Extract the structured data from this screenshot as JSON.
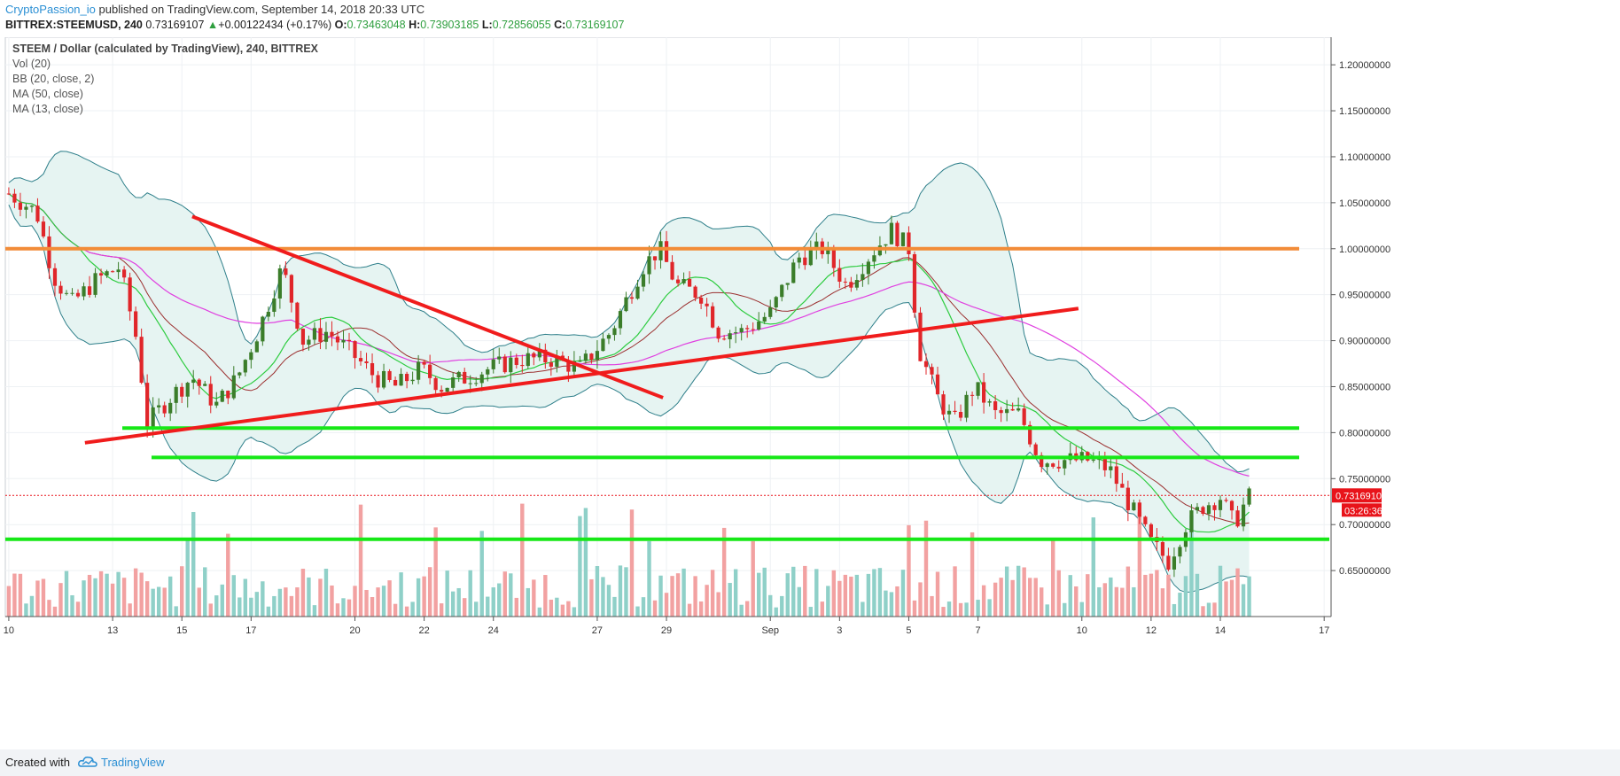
{
  "header": {
    "publisher": "CryptoPassion_io",
    "published_text": "published on TradingView.com, September 14, 2018 20:33 UTC",
    "symbol": "BITTREX:STEEMUSD, 240",
    "last": "0.73169107",
    "change_arrow": "▲",
    "change": "+0.00122434 (+0.17%)",
    "o_label": "O:",
    "o_value": "0.73463048",
    "h_label": "H:",
    "h_value": "0.73903185",
    "l_label": "L:",
    "l_value": "0.72856055",
    "c_label": "C:",
    "c_value": "0.73169107"
  },
  "footer": {
    "created_with": "Created with",
    "brand": "TradingView"
  },
  "colors": {
    "up": "#3b7d2a",
    "down": "#e0262a",
    "vol_up": "#8fd0c8",
    "vol_down": "#f2a1a1",
    "bb_band": "#2e7f8a",
    "bb_fill": "#e6f4f2",
    "bb_basis": "#9b2f2f",
    "ma50": "#e040e0",
    "ma13": "#2ecc40",
    "orange_line": "#f28c38",
    "red_trend": "#f01c1c",
    "green_support": "#17e817",
    "price_tag": "#e8131a"
  },
  "chart_data": {
    "type": "candlestick",
    "title": "STEEM / Dollar (calculated by TradingView), 240, BITTREX",
    "indicators": [
      "Vol (20)",
      "BB (20, close, 2)",
      "MA (50, close)",
      "MA (13, close)"
    ],
    "ylim": [
      0.6,
      1.23
    ],
    "y_ticks": [
      "1.20000000",
      "1.15000000",
      "1.10000000",
      "1.05000000",
      "1.00000000",
      "0.95000000",
      "0.90000000",
      "0.85000000",
      "0.80000000",
      "0.75000000",
      "0.70000000",
      "0.65000000"
    ],
    "y_tick_values": [
      1.2,
      1.15,
      1.1,
      1.05,
      1.0,
      0.95,
      0.9,
      0.85,
      0.8,
      0.75,
      0.7,
      0.65
    ],
    "x_ticks": [
      "10",
      "13",
      "15",
      "17",
      "20",
      "22",
      "24",
      "27",
      "29",
      "Sep",
      "3",
      "5",
      "7",
      "10",
      "12",
      "14",
      "17"
    ],
    "x_tick_days": [
      10,
      13,
      15,
      17,
      20,
      22,
      24,
      27,
      29,
      32,
      34,
      36,
      38,
      41,
      43,
      45,
      48
    ],
    "x_range_days": [
      9.9,
      48.2
    ],
    "last_price": "0.73169107",
    "countdown": "03:26:36",
    "price_path": [
      [
        10.0,
        1.06
      ],
      [
        10.8,
        1.04
      ],
      [
        11.3,
        0.97
      ],
      [
        11.8,
        0.94
      ],
      [
        12.5,
        0.965
      ],
      [
        13.2,
        0.98
      ],
      [
        13.7,
        0.9
      ],
      [
        14.0,
        0.81
      ],
      [
        14.7,
        0.84
      ],
      [
        15.3,
        0.86
      ],
      [
        16.0,
        0.83
      ],
      [
        16.6,
        0.86
      ],
      [
        17.2,
        0.91
      ],
      [
        17.9,
        0.98
      ],
      [
        18.5,
        0.9
      ],
      [
        19.2,
        0.91
      ],
      [
        19.8,
        0.89
      ],
      [
        20.6,
        0.86
      ],
      [
        21.2,
        0.85
      ],
      [
        21.9,
        0.87
      ],
      [
        22.5,
        0.85
      ],
      [
        23.2,
        0.86
      ],
      [
        23.9,
        0.87
      ],
      [
        24.8,
        0.88
      ],
      [
        25.7,
        0.88
      ],
      [
        26.5,
        0.87
      ],
      [
        27.4,
        0.91
      ],
      [
        28.3,
        0.98
      ],
      [
        28.8,
        1.0
      ],
      [
        29.3,
        0.96
      ],
      [
        30.0,
        0.95
      ],
      [
        30.5,
        0.91
      ],
      [
        31.2,
        0.91
      ],
      [
        32.0,
        0.93
      ],
      [
        32.8,
        0.99
      ],
      [
        33.5,
        1.0
      ],
      [
        34.2,
        0.96
      ],
      [
        34.8,
        0.99
      ],
      [
        35.5,
        1.02
      ],
      [
        36.0,
        1.0
      ],
      [
        36.3,
        0.89
      ],
      [
        36.8,
        0.84
      ],
      [
        37.3,
        0.81
      ],
      [
        37.9,
        0.85
      ],
      [
        38.5,
        0.82
      ],
      [
        39.2,
        0.82
      ],
      [
        39.8,
        0.77
      ],
      [
        40.5,
        0.77
      ],
      [
        41.2,
        0.77
      ],
      [
        41.8,
        0.76
      ],
      [
        42.4,
        0.72
      ],
      [
        43.0,
        0.68
      ],
      [
        43.5,
        0.66
      ],
      [
        44.0,
        0.7
      ],
      [
        44.5,
        0.72
      ],
      [
        45.0,
        0.73
      ],
      [
        45.4,
        0.7
      ],
      [
        45.8,
        0.73
      ]
    ],
    "horizontal_lines": [
      {
        "color": "orange",
        "value": 1.0
      },
      {
        "color": "green",
        "value": 0.805
      },
      {
        "color": "green",
        "value": 0.773
      },
      {
        "color": "green",
        "value": 0.684
      }
    ],
    "trend_lines": [
      {
        "color": "red",
        "from": [
          12.2,
          0.789
        ],
        "to": [
          40.9,
          0.935
        ]
      },
      {
        "color": "red",
        "from": [
          15.3,
          1.035
        ],
        "to": [
          28.9,
          0.838
        ]
      }
    ]
  }
}
